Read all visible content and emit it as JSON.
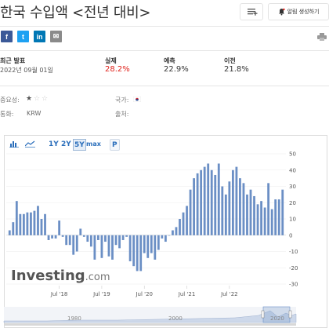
{
  "header": {
    "title": "한국 수입액 <전년 대비>",
    "alert_label": "알림 생성하기",
    "print_icon": "printer-icon"
  },
  "share": [
    {
      "name": "facebook",
      "glyph": "f",
      "color": "#3b5998"
    },
    {
      "name": "twitter",
      "glyph": "t",
      "color": "#1da1f2"
    },
    {
      "name": "linkedin",
      "glyph": "in",
      "color": "#0077b5"
    },
    {
      "name": "email",
      "glyph": "✉",
      "color": "#8a8a8a"
    }
  ],
  "release": {
    "latest_label": "최근 발표",
    "latest_date": "2022년 09월 01일",
    "actual_label": "실제",
    "actual_value": "28.2%",
    "actual_color": "#e0211a",
    "forecast_label": "예측",
    "forecast_value": "22.9%",
    "previous_label": "이전",
    "previous_value": "21.8%"
  },
  "meta": {
    "importance_label": "중요성:",
    "importance_stars": 1,
    "importance_max": 3,
    "currency_label": "통화:",
    "currency_value": "KRW",
    "country_label": "국가:",
    "country_flag": "south-korea-flag-icon",
    "source_label": "출처:"
  },
  "toolbar": {
    "bar_icon": "bar-chart-icon",
    "area_icon": "area-chart-icon",
    "ranges": [
      "1Y",
      "2Y",
      "5Y",
      "max"
    ],
    "selected_range": "5Y",
    "p_label": "P"
  },
  "chart_data": {
    "type": "bar",
    "x_tick_labels": [
      "Jul '18",
      "Jul '19",
      "Jul '20",
      "Jul '21",
      "Jul '22"
    ],
    "y_ticks": [
      50,
      40,
      30,
      20,
      10,
      0,
      -10,
      -20,
      -30
    ],
    "ylim": [
      -30,
      50
    ],
    "bar_color": "#6b8fc5",
    "values": [
      3,
      8,
      21,
      13,
      13,
      14,
      14,
      15,
      18,
      10,
      13,
      -3,
      -2,
      -2,
      9,
      -1,
      -6,
      -6,
      -12,
      -10,
      4,
      -1,
      -4,
      -7,
      -15,
      -3,
      -14,
      -4,
      -13,
      -15,
      -6,
      -8,
      -3,
      -1,
      -16,
      -19,
      -22,
      -22,
      -11,
      -14,
      -11,
      -15,
      -9,
      -2,
      -4,
      0,
      3,
      5,
      10,
      14,
      18,
      28,
      35,
      38,
      40,
      42,
      44,
      40,
      37,
      44,
      30,
      25,
      33,
      40,
      42,
      35,
      32,
      25,
      28,
      24,
      19,
      21,
      17,
      32,
      16,
      22,
      22,
      28
    ],
    "watermark": "Investing.com",
    "navigator_labels": [
      "1980",
      "2000",
      "2020"
    ]
  }
}
